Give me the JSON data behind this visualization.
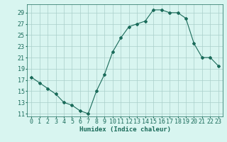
{
  "x": [
    0,
    1,
    2,
    3,
    4,
    5,
    6,
    7,
    8,
    9,
    10,
    11,
    12,
    13,
    14,
    15,
    16,
    17,
    18,
    19,
    20,
    21,
    22,
    23
  ],
  "y": [
    17.5,
    16.5,
    15.5,
    14.5,
    13.0,
    12.5,
    11.5,
    11.0,
    15.0,
    18.0,
    22.0,
    24.5,
    26.5,
    27.0,
    27.5,
    29.5,
    29.5,
    29.0,
    29.0,
    28.0,
    23.5,
    21.0,
    21.0,
    19.5
  ],
  "title": "",
  "xlabel": "Humidex (Indice chaleur)",
  "ylabel": "",
  "xlim": [
    -0.5,
    23.5
  ],
  "ylim": [
    10.5,
    30.5
  ],
  "yticks": [
    11,
    13,
    15,
    17,
    19,
    21,
    23,
    25,
    27,
    29
  ],
  "line_color": "#1a6b5a",
  "marker": "D",
  "marker_size": 2.0,
  "bg_color": "#d8f5f0",
  "grid_color": "#aacfca",
  "label_fontsize": 6.5,
  "tick_fontsize": 6.0
}
